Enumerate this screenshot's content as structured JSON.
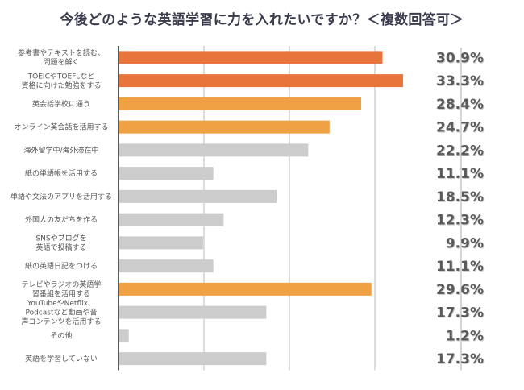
{
  "chart_data": {
    "type": "bar",
    "orientation": "horizontal",
    "title": "今後どのような英語学習に力を入れたいですか？＜複数回答可＞",
    "xlabel": "",
    "ylabel": "",
    "xlim": [
      0,
      35
    ],
    "grid": true,
    "gridlines_at": [
      10,
      20,
      30
    ],
    "legend": "none",
    "categories": [
      [
        "参考書やテキストを読む、",
        "問題を解く"
      ],
      [
        "TOEICやTOEFLなど",
        "資格に向けた勉強をする"
      ],
      [
        "英会話学校に通う"
      ],
      [
        "オンライン英会話を活用する"
      ],
      [
        "海外留学中/海外滞在中"
      ],
      [
        "紙の単語帳を活用する"
      ],
      [
        "単語や文法のアプリを活用する"
      ],
      [
        "外国人の友だちを作る"
      ],
      [
        "SNSやブログを",
        "英語で投稿する"
      ],
      [
        "紙の英語日記をつける"
      ],
      [
        "テレビやラジオの英語学",
        "習番組を活用する"
      ],
      [
        "YouTubeやNetflix、",
        "Podcastなど動画や音",
        "声コンテンツを活用する"
      ],
      [
        "その他"
      ],
      [
        "英語を学習していない"
      ]
    ],
    "values": [
      30.9,
      33.3,
      28.4,
      24.7,
      22.2,
      11.1,
      18.5,
      12.3,
      9.9,
      11.1,
      29.6,
      17.3,
      1.2,
      17.3
    ],
    "value_labels": [
      "30.9%",
      "33.3%",
      "28.4%",
      "24.7%",
      "22.2%",
      "11.1%",
      "18.5%",
      "12.3%",
      "9.9%",
      "11.1%",
      "29.6%",
      "17.3%",
      "1.2%",
      "17.3%"
    ],
    "bar_color_groups": [
      "top",
      "top",
      "high",
      "high",
      "other",
      "other",
      "other",
      "other",
      "other",
      "other",
      "high",
      "other",
      "other",
      "other"
    ],
    "colors": {
      "top": "#E8743B",
      "high": "#F0A144",
      "other": "#CCCCCC",
      "axis": "#222222",
      "grid": "#BBBBBB",
      "value_label": "#5b5b5b"
    }
  }
}
